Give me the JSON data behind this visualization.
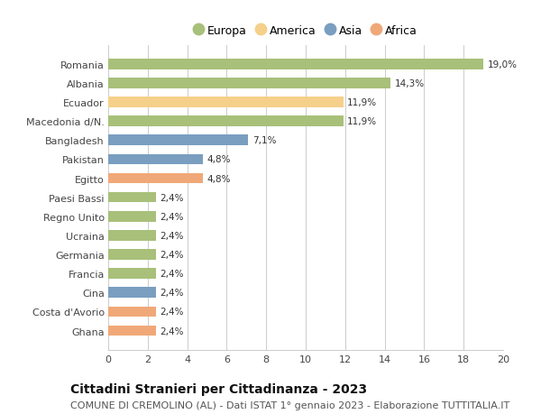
{
  "countries": [
    "Romania",
    "Albania",
    "Ecuador",
    "Macedonia d/N.",
    "Bangladesh",
    "Pakistan",
    "Egitto",
    "Paesi Bassi",
    "Regno Unito",
    "Ucraina",
    "Germania",
    "Francia",
    "Cina",
    "Costa d'Avorio",
    "Ghana"
  ],
  "values": [
    19.0,
    14.3,
    11.9,
    11.9,
    7.1,
    4.8,
    4.8,
    2.4,
    2.4,
    2.4,
    2.4,
    2.4,
    2.4,
    2.4,
    2.4
  ],
  "labels": [
    "19,0%",
    "14,3%",
    "11,9%",
    "11,9%",
    "7,1%",
    "4,8%",
    "4,8%",
    "2,4%",
    "2,4%",
    "2,4%",
    "2,4%",
    "2,4%",
    "2,4%",
    "2,4%",
    "2,4%"
  ],
  "continents": [
    "Europa",
    "Europa",
    "America",
    "Europa",
    "Asia",
    "Asia",
    "Africa",
    "Europa",
    "Europa",
    "Europa",
    "Europa",
    "Europa",
    "Asia",
    "Africa",
    "Africa"
  ],
  "continent_colors": {
    "Europa": "#a8c07a",
    "America": "#f5d08a",
    "Asia": "#7a9ec0",
    "Africa": "#f0a878"
  },
  "legend_order": [
    "Europa",
    "America",
    "Asia",
    "Africa"
  ],
  "xlim": [
    0,
    20
  ],
  "xticks": [
    0,
    2,
    4,
    6,
    8,
    10,
    12,
    14,
    16,
    18,
    20
  ],
  "title": "Cittadini Stranieri per Cittadinanza - 2023",
  "subtitle": "COMUNE DI CREMOLINO (AL) - Dati ISTAT 1° gennaio 2023 - Elaborazione TUTTITALIA.IT",
  "title_fontsize": 10,
  "subtitle_fontsize": 8,
  "bar_height": 0.55,
  "background_color": "#ffffff",
  "grid_color": "#cccccc"
}
